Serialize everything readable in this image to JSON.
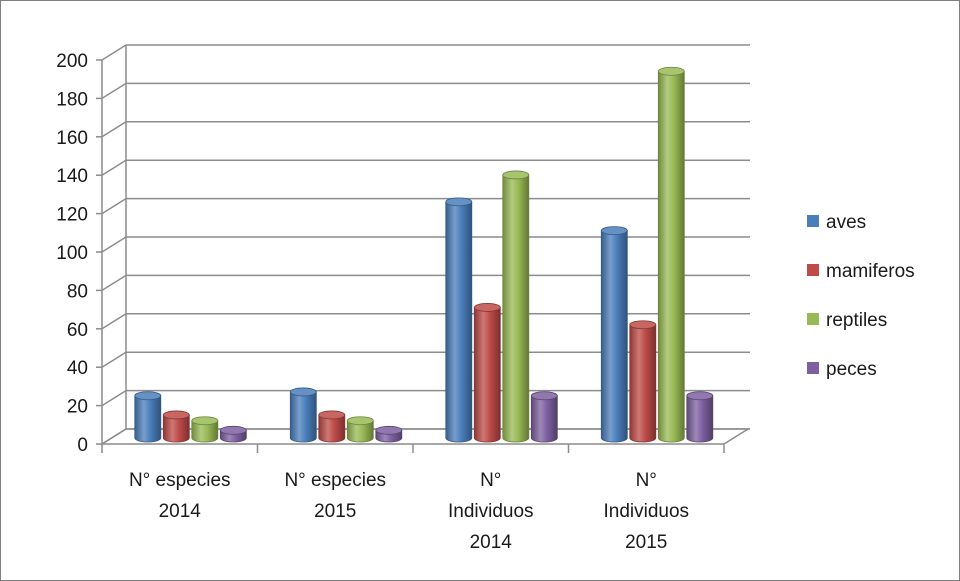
{
  "chart_data": {
    "type": "bar",
    "categories": [
      [
        "N° especies",
        "2014"
      ],
      [
        "N° especies",
        "2015"
      ],
      [
        "N°",
        "Individuos",
        "2014"
      ],
      [
        "N°",
        "Individuos",
        "2015"
      ]
    ],
    "series": [
      {
        "name": "aves",
        "color": "#4a7ebb",
        "values": [
          22,
          24,
          123,
          108
        ]
      },
      {
        "name": "mamiferos",
        "color": "#be4b48",
        "values": [
          12,
          12,
          68,
          59
        ]
      },
      {
        "name": "reptiles",
        "color": "#98b954",
        "values": [
          9,
          9,
          137,
          191
        ]
      },
      {
        "name": "peces",
        "color": "#7d60a0",
        "values": [
          4,
          4,
          22,
          22
        ]
      }
    ],
    "ylim": [
      0,
      200
    ],
    "yticks": [
      0,
      20,
      40,
      60,
      80,
      100,
      120,
      140,
      160,
      180,
      200
    ],
    "grid": true,
    "legend": "right"
  }
}
